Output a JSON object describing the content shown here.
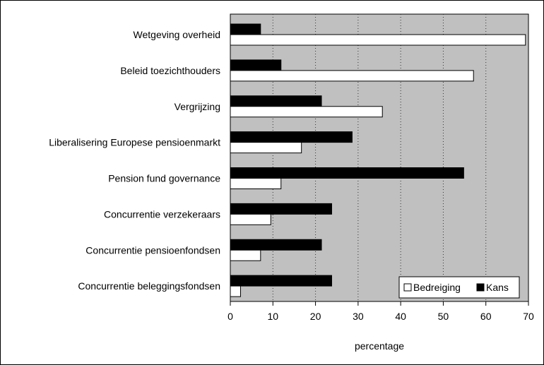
{
  "chart_data": {
    "type": "bar",
    "orientation": "horizontal",
    "categories": [
      "Wetgeving overheid",
      "Beleid toezichthouders",
      "Vergrijzing",
      "Liberalisering Europese pensioenmarkt",
      "Pension fund governance",
      "Concurrentie verzekeraars",
      "Concurrentie pensioenfondsen",
      "Concurrentie beleggingsfondsen"
    ],
    "series": [
      {
        "name": "Bedreiging",
        "values": [
          69.3,
          57.1,
          35.7,
          16.7,
          11.9,
          9.5,
          7.1,
          2.4
        ],
        "color": "#ffffff"
      },
      {
        "name": "Kans",
        "values": [
          7.1,
          11.9,
          21.4,
          28.6,
          54.8,
          23.8,
          21.4,
          23.8
        ],
        "color": "#000000"
      }
    ],
    "xlabel": "percentage",
    "ylabel": "",
    "xlim": [
      0,
      70
    ],
    "xticks": [
      "0",
      "10",
      "20",
      "30",
      "40",
      "50",
      "60",
      "70"
    ],
    "plot_background": "#c0c0c0",
    "gridlines": "vertical dotted",
    "legend_position": "bottom-right"
  }
}
